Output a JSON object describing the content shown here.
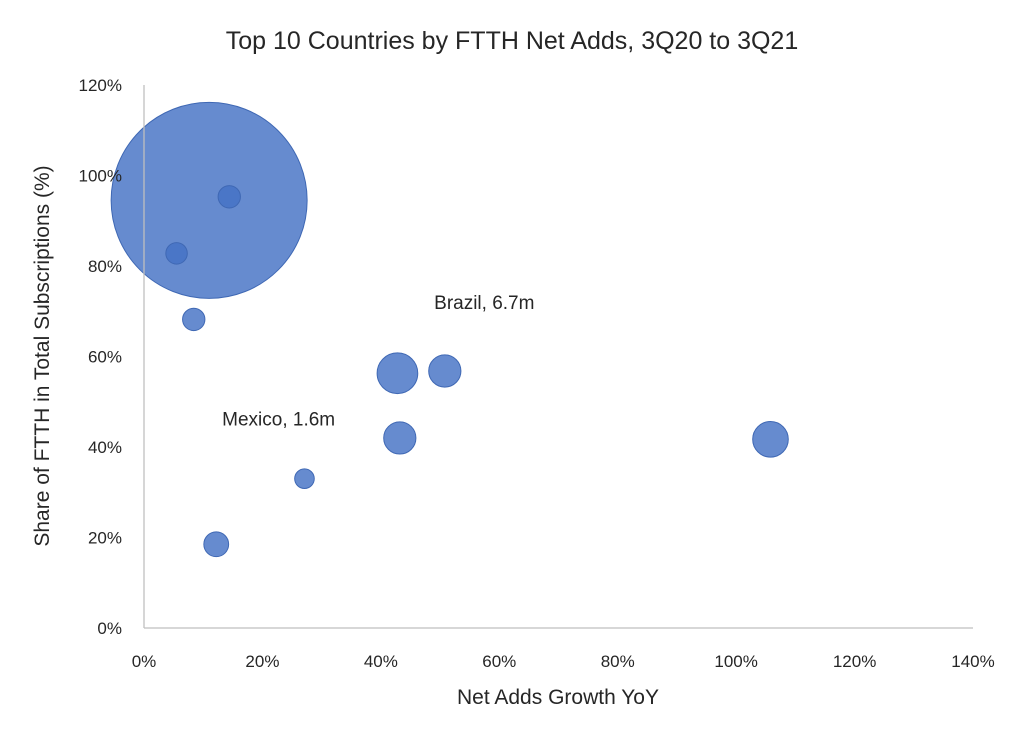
{
  "chart_data": {
    "type": "scatter",
    "subtype": "bubble",
    "title": "Top 10 Countries by FTTH Net Adds, 3Q20 to 3Q21",
    "xlabel": "Net Adds Growth YoY",
    "ylabel": "Share of FTTH in Total Subscriptions (%)",
    "xlim": [
      0,
      140
    ],
    "ylim": [
      0,
      120
    ],
    "x_ticks": [
      "0%",
      "20%",
      "40%",
      "60%",
      "80%",
      "100%",
      "120%",
      "140%"
    ],
    "y_ticks": [
      "0%",
      "20%",
      "40%",
      "60%",
      "80%",
      "100%",
      "120%"
    ],
    "grid": false,
    "legend": "none",
    "color": "#4472C4",
    "series": [
      {
        "points": [
          {
            "x": 11,
            "y": 94.5,
            "size": 100
          },
          {
            "x": 14.4,
            "y": 95.3,
            "size": 1.3
          },
          {
            "x": 5.5,
            "y": 82.8,
            "size": 1.2
          },
          {
            "x": 8.4,
            "y": 68.2,
            "size": 1.3
          },
          {
            "x": 42.8,
            "y": 56.3,
            "size": 4.3
          },
          {
            "x": 50.8,
            "y": 56.8,
            "size": 2.7
          },
          {
            "x": 43.2,
            "y": 42.0,
            "size": 2.7
          },
          {
            "x": 105.8,
            "y": 41.7,
            "size": 3.3
          },
          {
            "x": 27.1,
            "y": 33.0,
            "size": 1.0
          },
          {
            "x": 12.2,
            "y": 18.5,
            "size": 1.6
          }
        ]
      }
    ],
    "annotations": [
      {
        "text": "Brazil, 6.7m",
        "x": 49,
        "y": 70.5
      },
      {
        "text": "Mexico, 1.6m",
        "x": 13.2,
        "y": 44.8
      }
    ]
  }
}
